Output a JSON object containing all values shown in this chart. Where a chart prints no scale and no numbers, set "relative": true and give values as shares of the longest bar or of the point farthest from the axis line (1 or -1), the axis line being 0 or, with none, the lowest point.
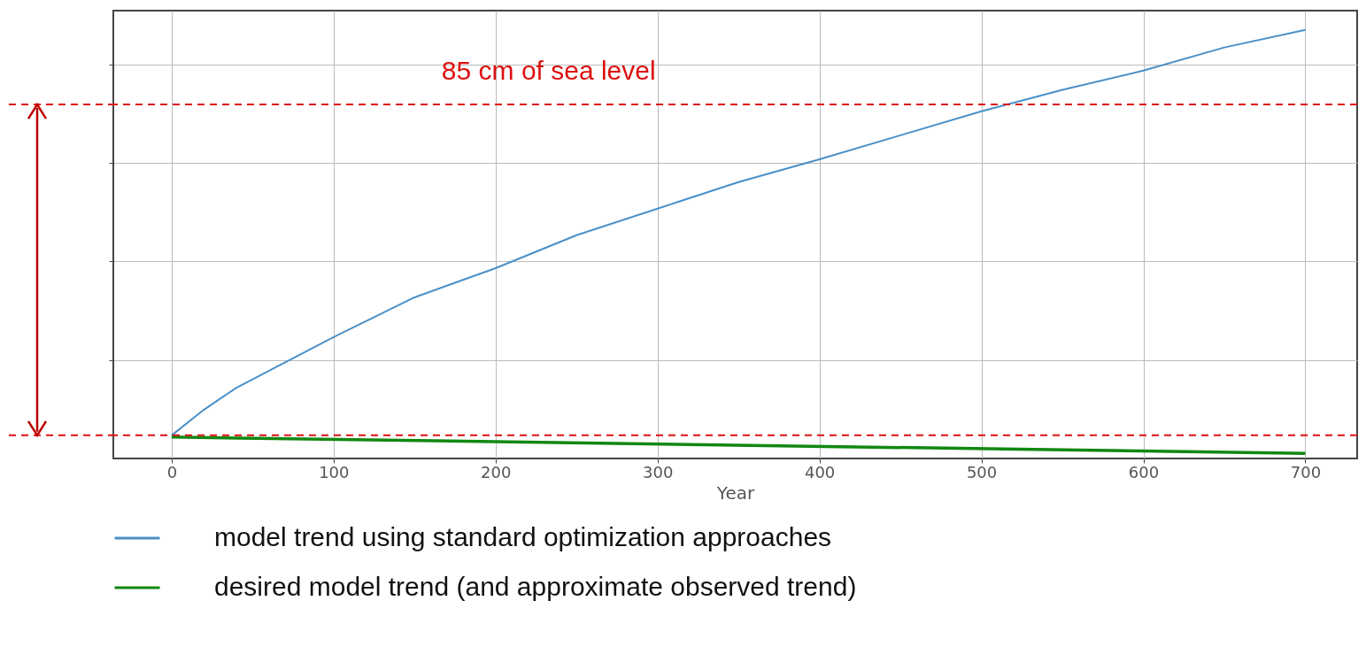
{
  "chart_data": {
    "type": "line",
    "relative": true,
    "xlabel": "Year",
    "xlim": [
      -36,
      732
    ],
    "xticks": [
      0,
      100,
      200,
      300,
      400,
      500,
      600,
      700
    ],
    "grid": true,
    "legend": "bottom",
    "marker": "none",
    "line_style": "solid",
    "series": [
      {
        "name": "model trend using standard optimization approaches",
        "color": "#4a90c8",
        "x": [
          0,
          20,
          40,
          100,
          150,
          200,
          250,
          300,
          350,
          400,
          450,
          500,
          550,
          600,
          650,
          700
        ],
        "values": [
          0.054,
          0.114,
          0.165,
          0.283,
          0.376,
          0.444,
          0.521,
          0.583,
          0.645,
          0.698,
          0.754,
          0.81,
          0.86,
          0.905,
          0.959,
          1
        ]
      },
      {
        "name": "desired model trend (and approximate observed trend)",
        "color": "#118811",
        "x": [
          0,
          700
        ],
        "values": [
          0.05,
          0.012
        ]
      }
    ],
    "ref_lines": [
      {
        "axis": "y",
        "value": 0.826,
        "label": "85 cm of sea level",
        "color": "#dd1111",
        "line_style": "dashed"
      },
      {
        "axis": "y",
        "value": 0.054,
        "color": "#dd1111",
        "line_style": "dashed"
      }
    ]
  }
}
